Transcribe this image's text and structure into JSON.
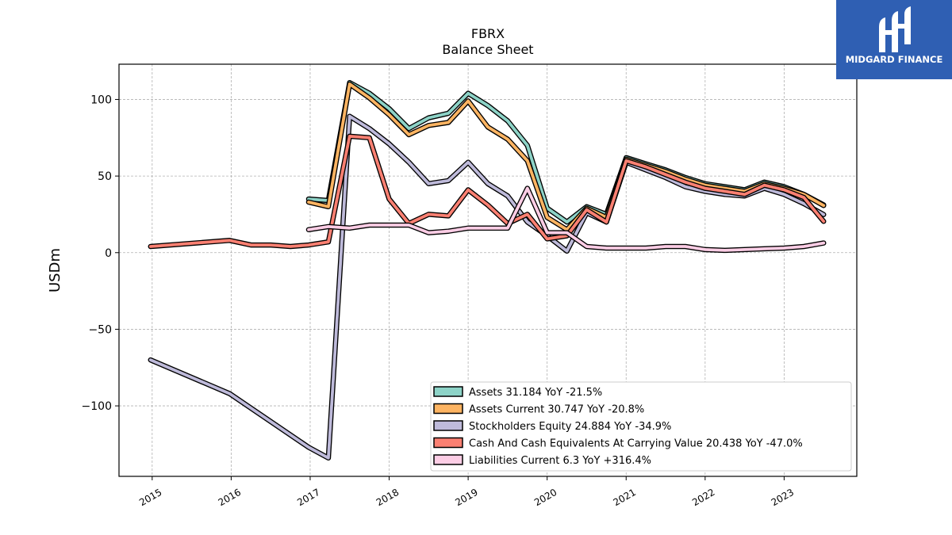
{
  "logo": {
    "text": "MIDGARD FINANCE"
  },
  "chart_data": {
    "type": "line",
    "title": "FBRX",
    "subtitle": "Balance  Sheet",
    "ylabel": "USDm",
    "xlabel": "",
    "ylim": [
      -146,
      123
    ],
    "xlim": [
      2014.58,
      2023.92
    ],
    "yticks": [
      -100,
      -50,
      0,
      50,
      100
    ],
    "yticklabels": [
      "−100",
      "−50",
      "0",
      "50",
      "100"
    ],
    "xticks": [
      2015,
      2016,
      2017,
      2018,
      2019,
      2020,
      2021,
      2022,
      2023
    ],
    "xticklabels": [
      "2015",
      "2016",
      "2017",
      "2018",
      "2019",
      "2020",
      "2021",
      "2022",
      "2023"
    ],
    "grid": true,
    "legend_position": "lower-right",
    "series": [
      {
        "name": "Assets",
        "legend": "Assets  31.184 YoY -21.5%",
        "color": "#8dd3c7",
        "points": [
          [
            2016.98,
            35
          ],
          [
            2017.23,
            34
          ],
          [
            2017.5,
            111
          ],
          [
            2017.75,
            104
          ],
          [
            2018.0,
            94
          ],
          [
            2018.25,
            81
          ],
          [
            2018.5,
            88
          ],
          [
            2018.75,
            91
          ],
          [
            2019.0,
            104
          ],
          [
            2019.25,
            96
          ],
          [
            2019.5,
            86
          ],
          [
            2019.75,
            70
          ],
          [
            2020.0,
            29
          ],
          [
            2020.25,
            20
          ],
          [
            2020.5,
            30
          ],
          [
            2020.75,
            25
          ],
          [
            2021.0,
            62
          ],
          [
            2021.25,
            58
          ],
          [
            2021.5,
            54
          ],
          [
            2021.75,
            49
          ],
          [
            2022.0,
            45
          ],
          [
            2022.25,
            43
          ],
          [
            2022.5,
            41
          ],
          [
            2022.75,
            46
          ],
          [
            2023.0,
            43
          ],
          [
            2023.25,
            38
          ],
          [
            2023.5,
            31.184
          ]
        ]
      },
      {
        "name": "Assets Current",
        "legend": "Assets Current  30.747 YoY -20.8%",
        "color": "#fdb462",
        "points": [
          [
            2016.98,
            33
          ],
          [
            2017.23,
            30
          ],
          [
            2017.5,
            110
          ],
          [
            2017.75,
            101
          ],
          [
            2018.0,
            90
          ],
          [
            2018.25,
            77
          ],
          [
            2018.5,
            83
          ],
          [
            2018.75,
            85
          ],
          [
            2019.0,
            99
          ],
          [
            2019.25,
            82
          ],
          [
            2019.5,
            74
          ],
          [
            2019.75,
            60
          ],
          [
            2020.0,
            23
          ],
          [
            2020.25,
            15
          ],
          [
            2020.5,
            29
          ],
          [
            2020.75,
            23
          ],
          [
            2021.0,
            61
          ],
          [
            2021.25,
            57
          ],
          [
            2021.5,
            53
          ],
          [
            2021.75,
            48
          ],
          [
            2022.0,
            44
          ],
          [
            2022.25,
            42
          ],
          [
            2022.5,
            40
          ],
          [
            2022.75,
            45
          ],
          [
            2023.0,
            42
          ],
          [
            2023.25,
            38
          ],
          [
            2023.5,
            30.747
          ]
        ]
      },
      {
        "name": "Stockholders Equity",
        "legend": "Stockholders Equity  24.884 YoY -34.9%",
        "color": "#bebada",
        "points": [
          [
            2014.98,
            -70
          ],
          [
            2015.98,
            -92
          ],
          [
            2016.98,
            -127
          ],
          [
            2017.23,
            -134
          ],
          [
            2017.5,
            89
          ],
          [
            2017.75,
            81
          ],
          [
            2018.0,
            71
          ],
          [
            2018.25,
            59
          ],
          [
            2018.5,
            45
          ],
          [
            2018.75,
            47
          ],
          [
            2019.0,
            59
          ],
          [
            2019.25,
            45
          ],
          [
            2019.5,
            37
          ],
          [
            2019.75,
            20
          ],
          [
            2020.0,
            11
          ],
          [
            2020.25,
            1
          ],
          [
            2020.5,
            26
          ],
          [
            2020.75,
            20
          ],
          [
            2021.0,
            59
          ],
          [
            2021.25,
            54
          ],
          [
            2021.5,
            49
          ],
          [
            2021.75,
            43
          ],
          [
            2022.0,
            40
          ],
          [
            2022.25,
            38
          ],
          [
            2022.5,
            37
          ],
          [
            2022.75,
            42
          ],
          [
            2023.0,
            38
          ],
          [
            2023.25,
            32
          ],
          [
            2023.5,
            24.884
          ]
        ]
      },
      {
        "name": "Cash And Cash Equivalents At Carrying Value",
        "legend": "Cash And Cash Equivalents At Carrying Value  20.438 YoY -47.0%",
        "color": "#fb8072",
        "points": [
          [
            2014.98,
            4
          ],
          [
            2015.98,
            8
          ],
          [
            2016.25,
            5
          ],
          [
            2016.5,
            5
          ],
          [
            2016.75,
            4
          ],
          [
            2016.98,
            5
          ],
          [
            2017.23,
            7
          ],
          [
            2017.5,
            76
          ],
          [
            2017.75,
            75
          ],
          [
            2018.0,
            35
          ],
          [
            2018.25,
            19
          ],
          [
            2018.5,
            25
          ],
          [
            2018.75,
            24
          ],
          [
            2019.0,
            41
          ],
          [
            2019.25,
            31
          ],
          [
            2019.5,
            19
          ],
          [
            2019.75,
            25
          ],
          [
            2020.0,
            9
          ],
          [
            2020.25,
            11
          ],
          [
            2020.5,
            28
          ],
          [
            2020.75,
            20
          ],
          [
            2021.0,
            60
          ],
          [
            2021.25,
            56
          ],
          [
            2021.5,
            51
          ],
          [
            2021.75,
            46
          ],
          [
            2022.0,
            42
          ],
          [
            2022.25,
            40
          ],
          [
            2022.5,
            38
          ],
          [
            2022.75,
            44
          ],
          [
            2023.0,
            41
          ],
          [
            2023.25,
            36
          ],
          [
            2023.5,
            20.438
          ]
        ]
      },
      {
        "name": "Liabilities Current",
        "legend": "Liabilities Current  6.3 YoY +316.4%",
        "color": "#fccde5",
        "points": [
          [
            2016.98,
            15
          ],
          [
            2017.23,
            17
          ],
          [
            2017.5,
            16
          ],
          [
            2017.75,
            18
          ],
          [
            2018.0,
            18
          ],
          [
            2018.25,
            18
          ],
          [
            2018.5,
            13
          ],
          [
            2018.75,
            14
          ],
          [
            2019.0,
            16
          ],
          [
            2019.25,
            16
          ],
          [
            2019.5,
            16
          ],
          [
            2019.75,
            42
          ],
          [
            2020.0,
            13
          ],
          [
            2020.25,
            13
          ],
          [
            2020.5,
            4
          ],
          [
            2020.75,
            3
          ],
          [
            2021.0,
            3
          ],
          [
            2021.25,
            3
          ],
          [
            2021.5,
            4
          ],
          [
            2021.75,
            4
          ],
          [
            2022.0,
            2
          ],
          [
            2022.25,
            1.5
          ],
          [
            2022.5,
            2
          ],
          [
            2022.75,
            2.5
          ],
          [
            2023.0,
            3
          ],
          [
            2023.25,
            4
          ],
          [
            2023.5,
            6.3
          ]
        ]
      }
    ]
  }
}
